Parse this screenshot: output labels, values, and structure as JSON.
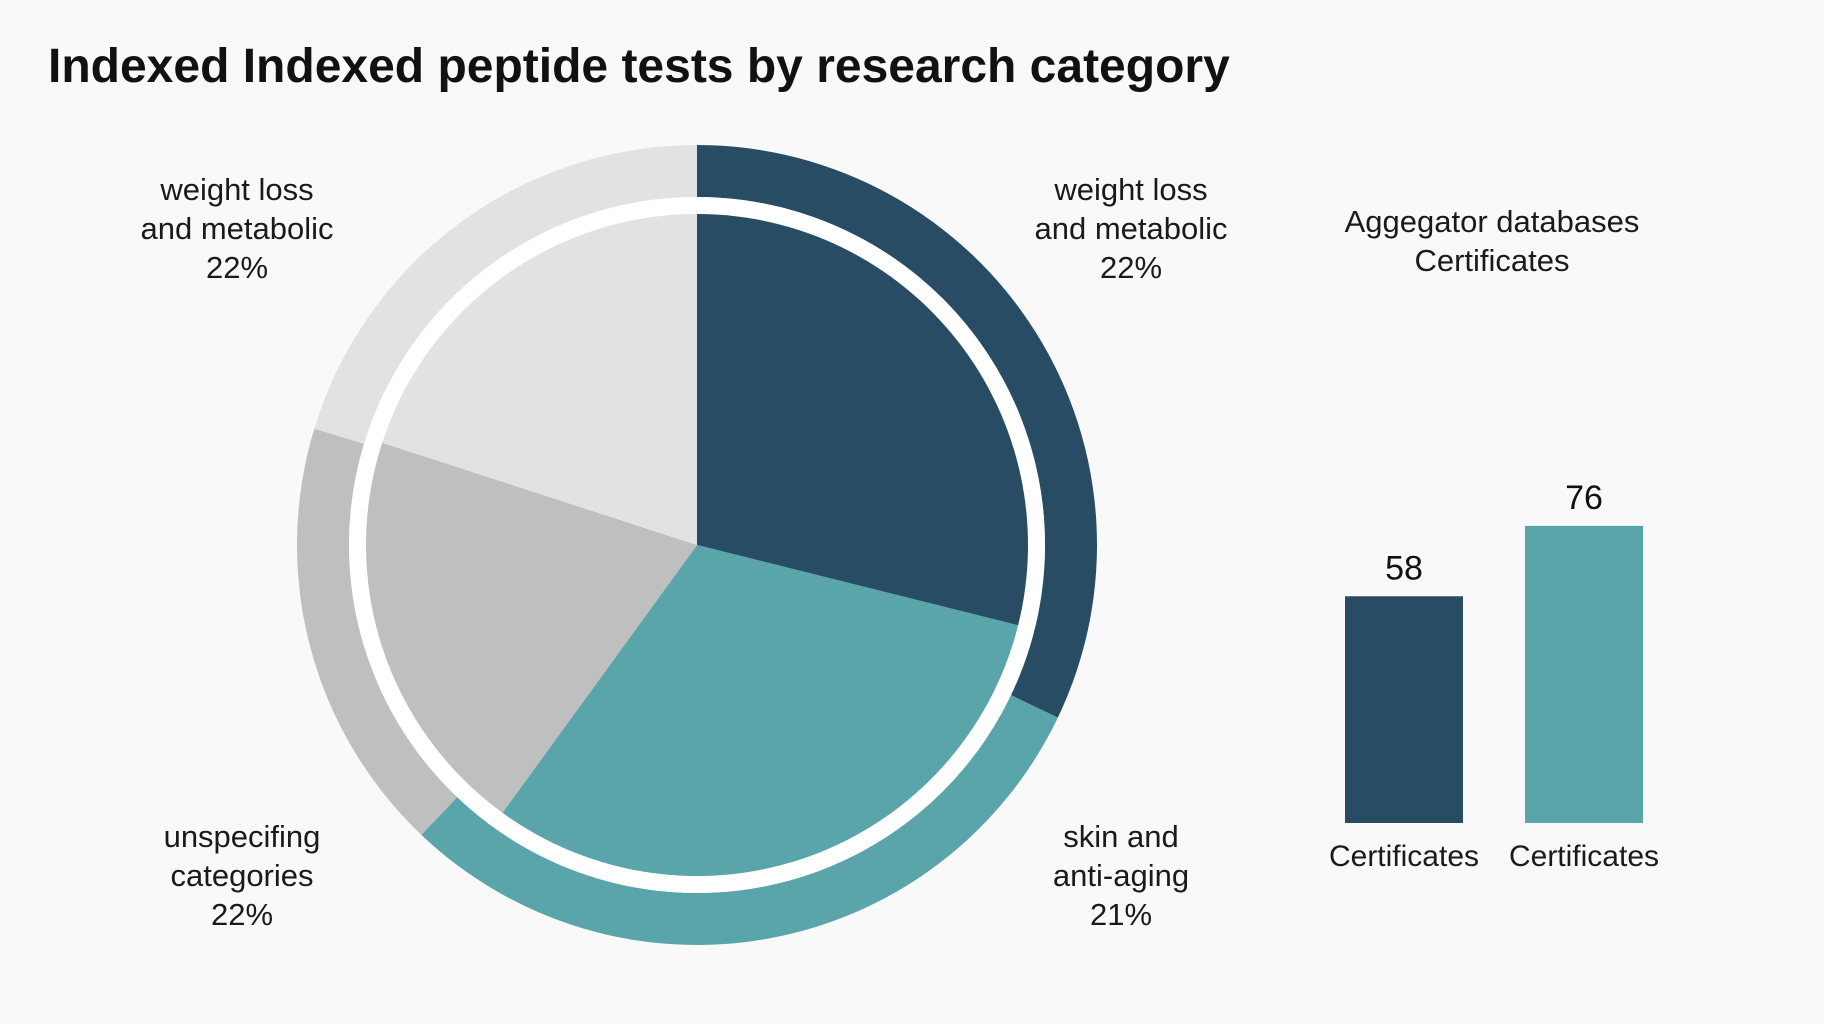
{
  "title": "Indexed Indexed peptide tests by research category",
  "chart_data": [
    {
      "type": "pie",
      "title": "",
      "series": [
        {
          "label_lines": [
            "weight loss",
            "and metabolic",
            "22%"
          ],
          "value": 22,
          "color": "#274c64"
        },
        {
          "label_lines": [
            "skin and",
            "anti-aging",
            "21%"
          ],
          "value": 21,
          "color": "#5aa5aa"
        },
        {
          "label_lines": [
            "unspecifing",
            "categories",
            "22%"
          ],
          "value": 22,
          "color": "#bfbfbf"
        },
        {
          "label_lines": [
            "weight loss",
            "and metabolic",
            "22%"
          ],
          "value": 22,
          "color": "#e2e2e2"
        }
      ],
      "rendered_share": [
        0.289,
        0.311,
        0.2,
        0.2
      ],
      "ring_share": [
        0.321,
        0.3,
        0.176,
        0.203
      ]
    },
    {
      "type": "bar",
      "title_lines": [
        "Aggegator databases",
        "Certificates"
      ],
      "categories": [
        "Certificates",
        "Certificates"
      ],
      "values": [
        58,
        76
      ],
      "colors": [
        "#274c64",
        "#5aa5aa"
      ],
      "ylim": [
        0,
        110
      ]
    }
  ]
}
